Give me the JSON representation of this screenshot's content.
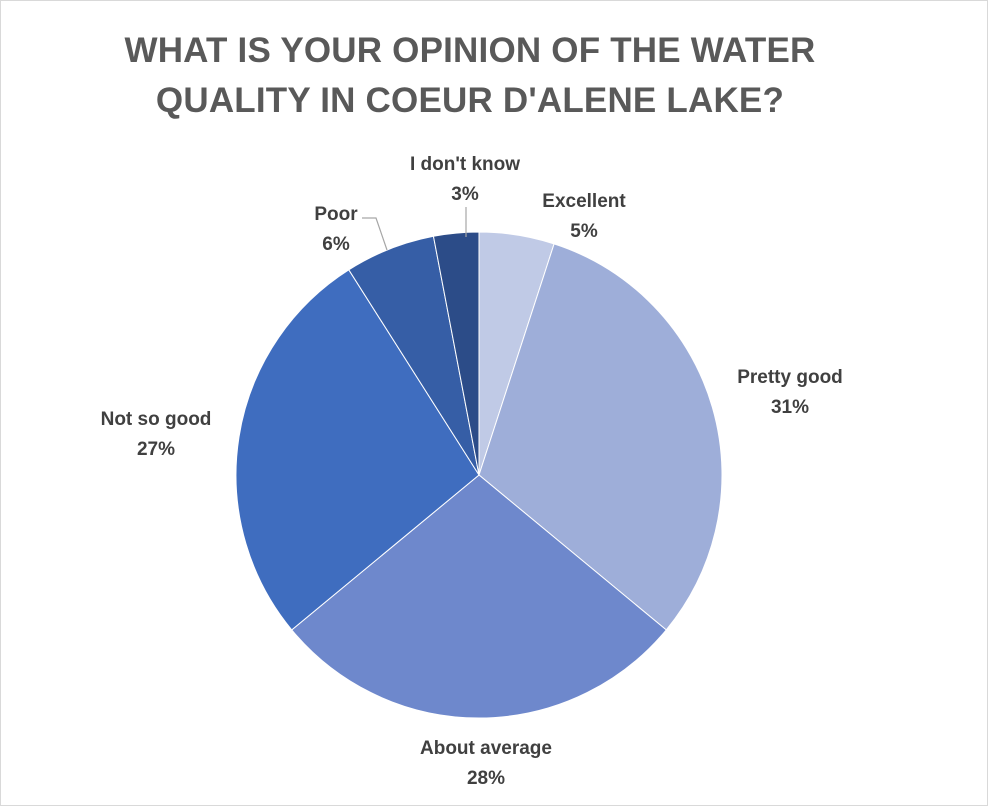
{
  "chart_data": {
    "type": "pie",
    "title_lines": [
      "WHAT IS YOUR OPINION OF THE WATER",
      "QUALITY IN COEUR D'ALENE LAKE?"
    ],
    "slices": [
      {
        "label": "Excellent",
        "percent_text": "5%",
        "value": 5,
        "color": "#c0cae6"
      },
      {
        "label": "Pretty good",
        "percent_text": "31%",
        "value": 31,
        "color": "#9eaed9"
      },
      {
        "label": "About average",
        "percent_text": "28%",
        "value": 28,
        "color": "#6e88cc"
      },
      {
        "label": "Not so good",
        "percent_text": "27%",
        "value": 27,
        "color": "#3f6dbf"
      },
      {
        "label": "Poor",
        "percent_text": "6%",
        "value": 6,
        "color": "#365ea6"
      },
      {
        "label": "I don't know",
        "percent_text": "3%",
        "value": 3,
        "color": "#2c4c88"
      }
    ],
    "legend": "none",
    "data_labels": "outside"
  }
}
